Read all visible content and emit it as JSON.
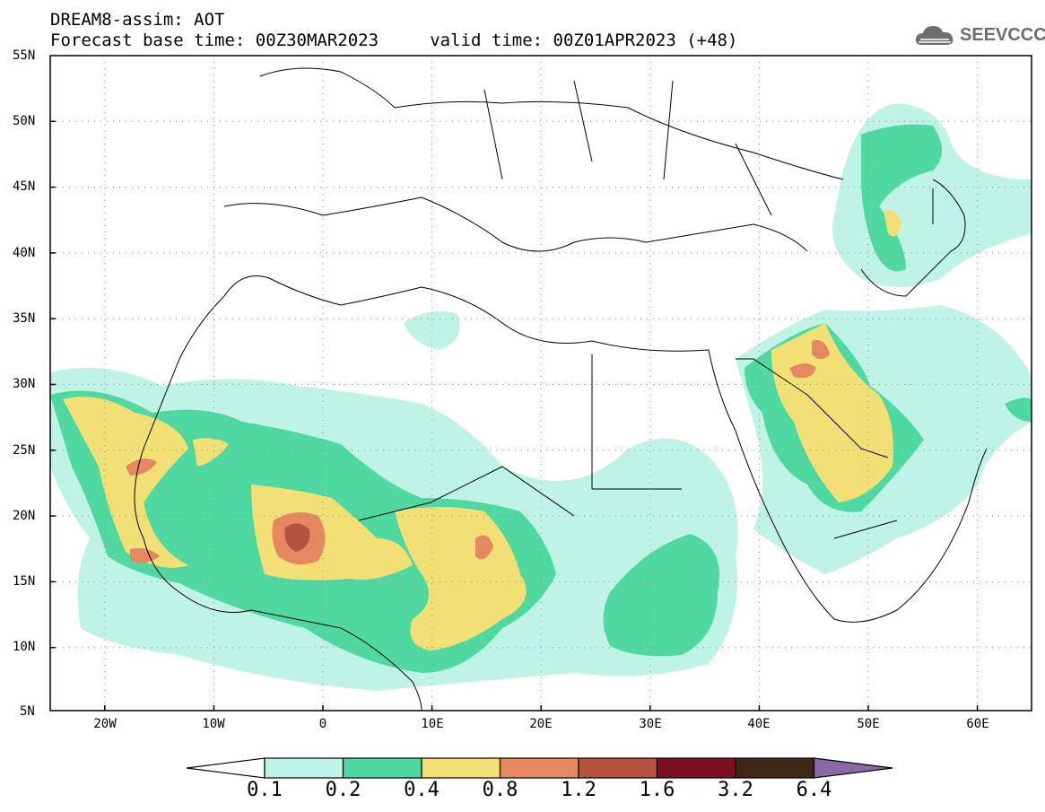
{
  "header": {
    "title_line1": "DREAM8-assim: AOT",
    "title_line2": "Forecast base time: 00Z30MAR2023     valid time: 00Z01APR2023 (+48)"
  },
  "logo": {
    "text": "SEEVCCC",
    "icon": "cloud-icon",
    "color": "#6e6e6e"
  },
  "map": {
    "lat_labels": [
      "55N",
      "50N",
      "45N",
      "40N",
      "35N",
      "30N",
      "25N",
      "20N",
      "15N",
      "10N",
      "5N"
    ],
    "lon_labels": [
      "20W",
      "10W",
      "0",
      "10E",
      "20E",
      "30E",
      "40E",
      "50E",
      "60E"
    ],
    "lat_range": [
      5,
      55
    ],
    "lon_range": [
      -25,
      65
    ],
    "gridlines": "dotted"
  },
  "colorbar": {
    "labels": [
      "0.1",
      "0.2",
      "0.4",
      "0.8",
      "1.2",
      "1.6",
      "3.2",
      "6.4"
    ],
    "colors": [
      "#ffffff",
      "#bff3e6",
      "#4fd9a0",
      "#f2e077",
      "#e5875f",
      "#b5513f",
      "#7c0f22",
      "#3e2716",
      "#8a6aa6"
    ]
  }
}
